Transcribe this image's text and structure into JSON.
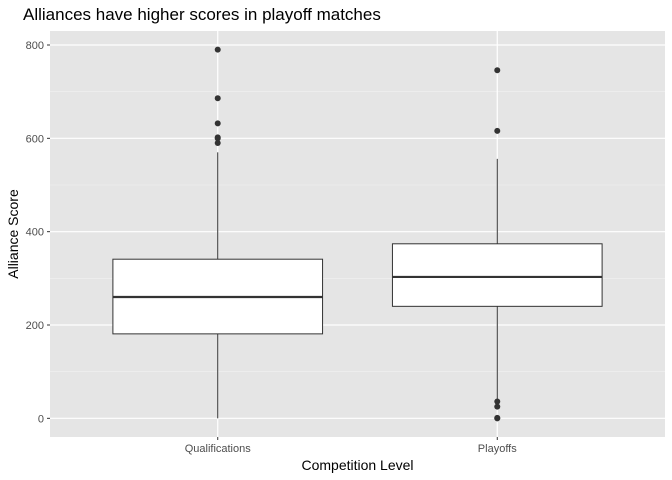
{
  "chart_data": {
    "type": "boxplot",
    "title": "Alliances have higher scores in playoff matches",
    "xlabel": "Competition Level",
    "ylabel": "Alliance Score",
    "ylim": [
      -40,
      830
    ],
    "yticks": [
      0,
      200,
      400,
      600,
      800
    ],
    "grid": true,
    "categories": [
      "Qualifications",
      "Playoffs"
    ],
    "boxes": [
      {
        "category": "Qualifications",
        "min": 0,
        "q1": 181,
        "median": 260,
        "q3": 341,
        "max": 570,
        "outliers": [
          590,
          600,
          602,
          632,
          686,
          790
        ]
      },
      {
        "category": "Playoffs",
        "min": 40,
        "q1": 240,
        "median": 303,
        "q3": 374,
        "max": 556,
        "outliers": [
          0,
          1,
          25,
          36,
          616,
          746
        ]
      }
    ],
    "colors": {
      "panel": "#e5e5e5",
      "grid_major": "#ffffff",
      "box_fill": "#ffffff",
      "box_line": "#333333",
      "point": "#333333"
    }
  }
}
